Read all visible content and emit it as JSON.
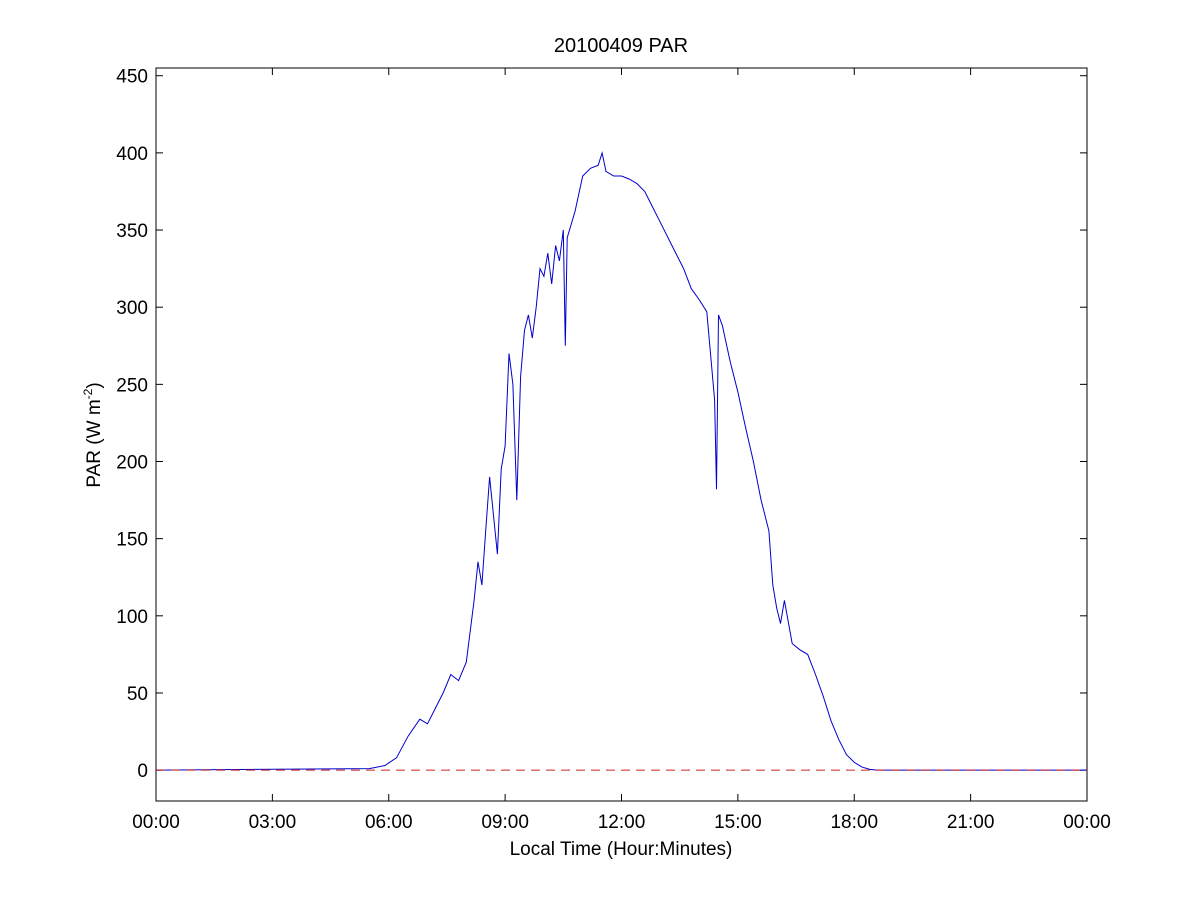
{
  "chart_data": {
    "type": "line",
    "title": "20100409 PAR",
    "xlabel": "Local Time (Hour:Minutes)",
    "ylabel_base": "PAR (W m",
    "ylabel_sup": "-2",
    "ylabel_close": ")",
    "x_unit": "hours",
    "xlim": [
      0,
      24
    ],
    "ylim": [
      -20,
      455
    ],
    "xticks": [
      0,
      3,
      6,
      9,
      12,
      15,
      18,
      21,
      24
    ],
    "xtick_labels": [
      "00:00",
      "03:00",
      "06:00",
      "09:00",
      "12:00",
      "15:00",
      "18:00",
      "21:00",
      "00:00"
    ],
    "yticks": [
      0,
      50,
      100,
      150,
      200,
      250,
      300,
      350,
      400,
      450
    ],
    "ytick_labels": [
      "0",
      "50",
      "100",
      "150",
      "200",
      "250",
      "300",
      "350",
      "400",
      "450"
    ],
    "grid": false,
    "series": [
      {
        "color": "#0000cc",
        "style": "solid",
        "x": [
          0,
          5.5,
          5.9,
          6.2,
          6.5,
          6.8,
          7.0,
          7.2,
          7.4,
          7.6,
          7.8,
          8.0,
          8.2,
          8.3,
          8.4,
          8.5,
          8.6,
          8.7,
          8.8,
          8.9,
          9.0,
          9.1,
          9.2,
          9.3,
          9.4,
          9.5,
          9.6,
          9.7,
          9.8,
          9.9,
          10.0,
          10.1,
          10.2,
          10.3,
          10.4,
          10.5,
          10.55,
          10.6,
          10.8,
          11.0,
          11.2,
          11.4,
          11.5,
          11.6,
          11.8,
          12.0,
          12.2,
          12.4,
          12.6,
          12.8,
          13.0,
          13.3,
          13.6,
          13.8,
          14.0,
          14.2,
          14.4,
          14.45,
          14.5,
          14.6,
          14.8,
          15.0,
          15.2,
          15.4,
          15.6,
          15.8,
          15.9,
          16.0,
          16.1,
          16.2,
          16.4,
          16.6,
          16.8,
          17.0,
          17.1,
          17.2,
          17.4,
          17.6,
          17.8,
          18.0,
          18.2,
          18.4,
          18.6,
          19.0,
          24
        ],
        "y": [
          0,
          1,
          3,
          8,
          22,
          33,
          30,
          40,
          50,
          62,
          58,
          70,
          110,
          135,
          120,
          155,
          190,
          165,
          140,
          195,
          210,
          270,
          250,
          175,
          255,
          285,
          295,
          280,
          300,
          325,
          320,
          335,
          315,
          340,
          330,
          350,
          275,
          345,
          362,
          385,
          390,
          392,
          400,
          388,
          385,
          385,
          383,
          380,
          375,
          365,
          355,
          340,
          325,
          312,
          305,
          297,
          240,
          182,
          295,
          288,
          265,
          245,
          222,
          200,
          175,
          155,
          120,
          105,
          95,
          110,
          82,
          78,
          75,
          62,
          55,
          48,
          32,
          20,
          10,
          5,
          2,
          0.5,
          0,
          0,
          0
        ]
      },
      {
        "color": "#cc2222",
        "style": "dashed",
        "x": [
          0,
          24
        ],
        "y": [
          0,
          0
        ]
      }
    ]
  }
}
